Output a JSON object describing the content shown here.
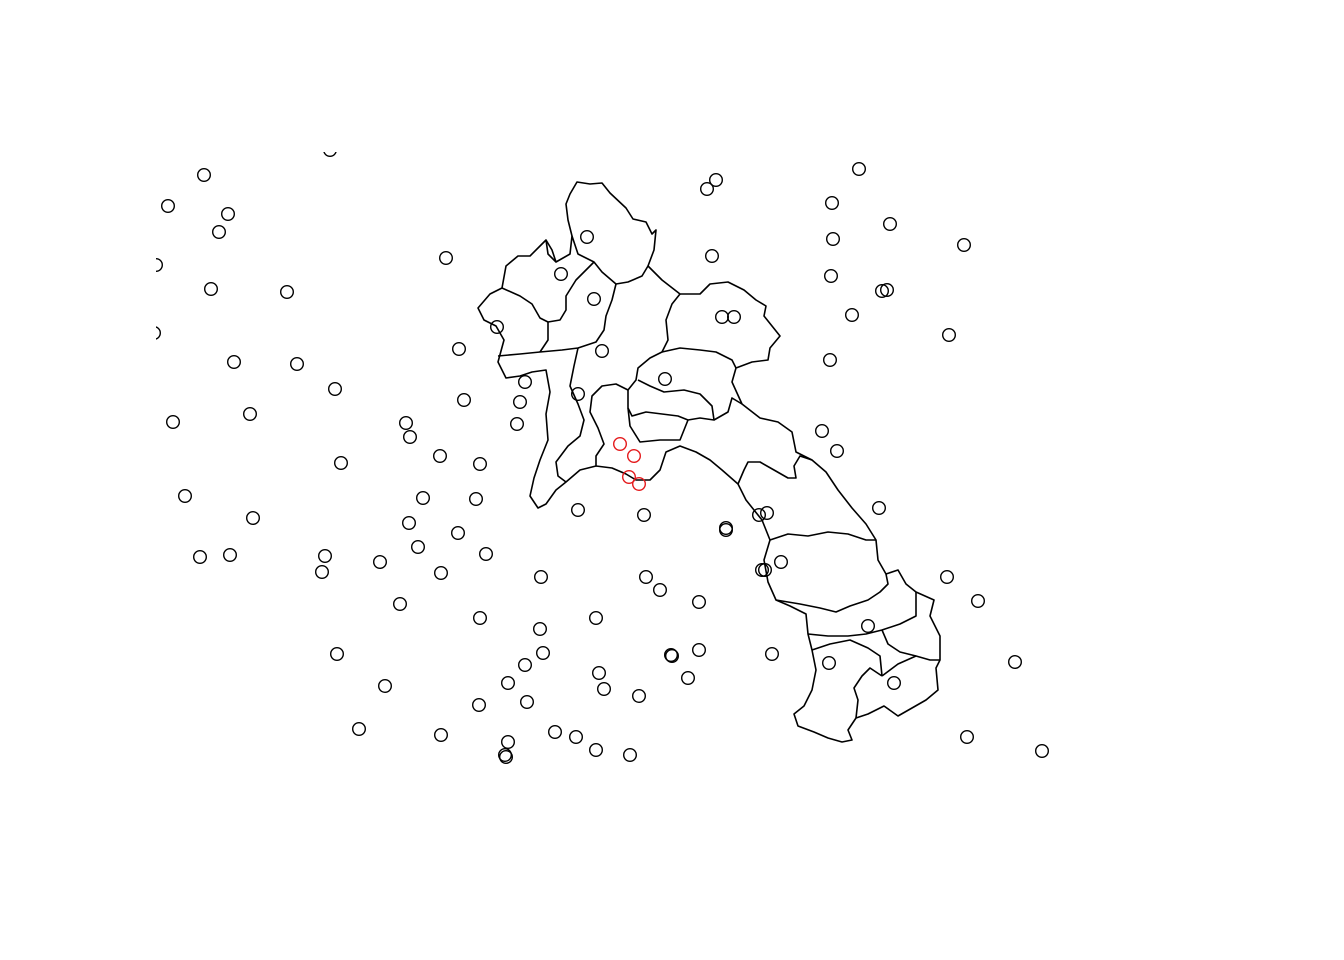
{
  "colors": {
    "background": "#ffffff",
    "boundary": "#000000",
    "point": "#000000",
    "highlight": "#e41a1c"
  },
  "legend": null,
  "title": ""
}
